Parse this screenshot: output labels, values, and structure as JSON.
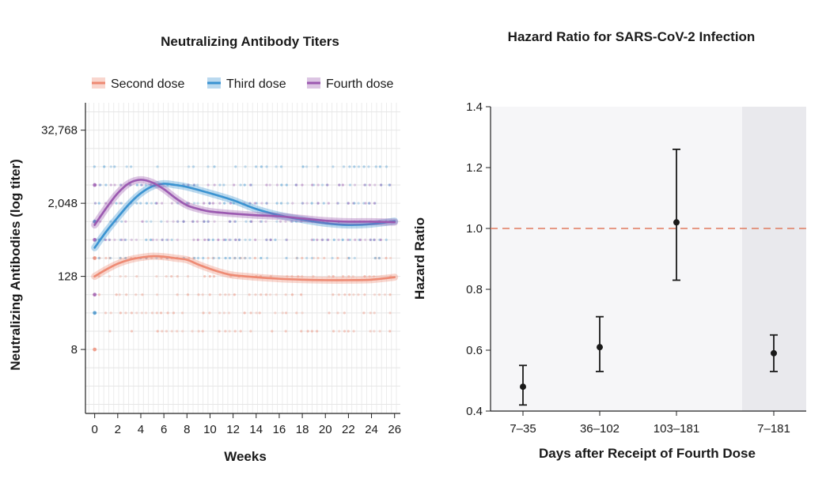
{
  "chart_data": [
    {
      "type": "line",
      "title": "Neutralizing Antibody Titers",
      "xlabel": "Weeks",
      "ylabel": "Neutralizing Antibodies (log titer)",
      "x_ticks": [
        0,
        2,
        4,
        6,
        8,
        10,
        12,
        14,
        16,
        18,
        20,
        22,
        24,
        26
      ],
      "y_ticks": [
        {
          "value": 8,
          "label": "8"
        },
        {
          "value": 128,
          "label": "128"
        },
        {
          "value": 2048,
          "label": "2,048"
        },
        {
          "value": 32768,
          "label": "32,768"
        }
      ],
      "xlim": [
        -0.8,
        26.5
      ],
      "ylim_log2": [
        -0.5,
        16.5
      ],
      "series": [
        {
          "name": "Second dose",
          "color": "#ee8a73",
          "points": [
            [
              0,
              128
            ],
            [
              1,
              166
            ],
            [
              2,
              207
            ],
            [
              3,
              240
            ],
            [
              4,
              262
            ],
            [
              5,
              275
            ],
            [
              6,
              270
            ],
            [
              7,
              255
            ],
            [
              8,
              240
            ],
            [
              9,
              200
            ],
            [
              10,
              170
            ],
            [
              11,
              148
            ],
            [
              12,
              134
            ],
            [
              14,
              124
            ],
            [
              16,
              117
            ],
            [
              18,
              113
            ],
            [
              20,
              111
            ],
            [
              22,
              111
            ],
            [
              24,
              113
            ],
            [
              26,
              124
            ]
          ],
          "dot_levels": [
            256,
            128,
            64,
            32,
            16
          ]
        },
        {
          "name": "Third dose",
          "color": "#3a93d1",
          "points": [
            [
              0,
              380
            ],
            [
              1,
              700
            ],
            [
              2,
              1200
            ],
            [
              3,
              2000
            ],
            [
              4,
              3000
            ],
            [
              5,
              3900
            ],
            [
              6,
              4300
            ],
            [
              7,
              4100
            ],
            [
              8,
              3800
            ],
            [
              10,
              3000
            ],
            [
              12,
              2300
            ],
            [
              14,
              1650
            ],
            [
              16,
              1300
            ],
            [
              18,
              1100
            ],
            [
              20,
              960
            ],
            [
              22,
              900
            ],
            [
              24,
              930
            ],
            [
              26,
              1040
            ]
          ],
          "dot_levels": [
            8192,
            4096,
            2048,
            1024,
            512,
            256
          ]
        },
        {
          "name": "Fourth dose",
          "color": "#9b59b0",
          "points": [
            [
              0,
              900
            ],
            [
              1,
              1700
            ],
            [
              2,
              3000
            ],
            [
              3,
              4400
            ],
            [
              4,
              5000
            ],
            [
              5,
              4500
            ],
            [
              6,
              3500
            ],
            [
              7,
              2500
            ],
            [
              8,
              1900
            ],
            [
              9,
              1650
            ],
            [
              10,
              1500
            ],
            [
              12,
              1380
            ],
            [
              14,
              1300
            ],
            [
              16,
              1250
            ],
            [
              18,
              1150
            ],
            [
              20,
              1060
            ],
            [
              22,
              1020
            ],
            [
              24,
              1020
            ],
            [
              26,
              1000
            ]
          ],
          "dot_levels": [
            4096,
            2048,
            1024,
            512
          ]
        }
      ],
      "legend": {
        "position": "top"
      }
    },
    {
      "type": "errorbar",
      "title": "Hazard Ratio for SARS-CoV-2 Infection",
      "xlabel": "Days after Receipt of Fourth Dose",
      "ylabel": "Hazard Ratio",
      "ylim": [
        0.4,
        1.4
      ],
      "y_ticks": [
        "0.4",
        "0.6",
        "0.8",
        "1.0",
        "1.2",
        "1.4"
      ],
      "reference_line": 1.0,
      "points": [
        {
          "category": "7–35",
          "hr": 0.48,
          "lower": 0.42,
          "upper": 0.55
        },
        {
          "category": "36–102",
          "hr": 0.61,
          "lower": 0.53,
          "upper": 0.71
        },
        {
          "category": "103–181",
          "hr": 1.02,
          "lower": 0.83,
          "upper": 1.26
        },
        {
          "category": "7–181",
          "hr": 0.59,
          "lower": 0.53,
          "upper": 0.65
        }
      ],
      "shaded_category": "7–181"
    }
  ]
}
